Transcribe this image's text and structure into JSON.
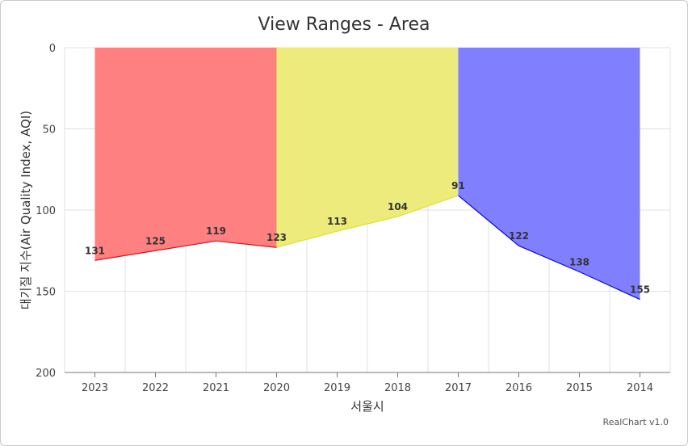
{
  "chart_data": {
    "type": "area",
    "title": "View Ranges - Area",
    "xlabel": "서울시",
    "ylabel": "대기질 지수(Air Quality Index, AQI)",
    "categories": [
      "2023",
      "2022",
      "2021",
      "2020",
      "2019",
      "2018",
      "2017",
      "2016",
      "2015",
      "2014"
    ],
    "values": [
      131,
      125,
      119,
      123,
      113,
      104,
      91,
      122,
      138,
      155
    ],
    "data_labels": [
      "131",
      "125",
      "119",
      "123",
      "113",
      "104",
      "91",
      "122",
      "138",
      "155"
    ],
    "label_at": [
      0,
      1,
      2,
      3,
      4,
      5,
      6,
      7,
      8,
      9
    ],
    "ylim": [
      0,
      200
    ],
    "y_reversed": true,
    "yticks": [
      0,
      50,
      100,
      150,
      200
    ],
    "ytick_labels": [
      "0",
      "50",
      "100",
      "150",
      "200"
    ],
    "grid": true,
    "view_ranges": [
      {
        "from": "2023",
        "to": "2020",
        "fill": "#ff8080",
        "line": "#ff0000"
      },
      {
        "from": "2020",
        "to": "2017",
        "fill": "#eceb7c",
        "line": "#e6e600"
      },
      {
        "from": "2017",
        "to": "2014",
        "fill": "#8080ff",
        "line": "#0000ff"
      }
    ]
  },
  "credit": "RealChart v1.0"
}
